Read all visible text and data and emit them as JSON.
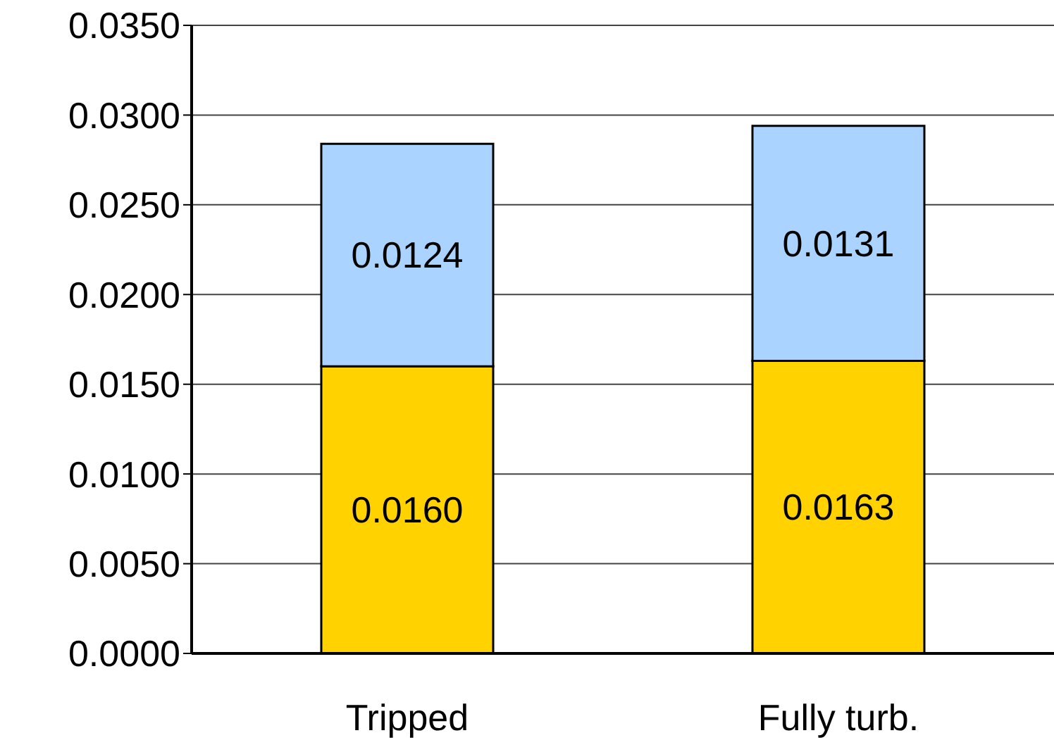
{
  "chart_data": {
    "type": "bar",
    "stacked": true,
    "categories": [
      "Tripped",
      "Fully turb."
    ],
    "series": [
      {
        "color": "#ffd200",
        "values": [
          0.016,
          0.0163
        ],
        "value_labels": [
          "0.0160",
          "0.0163"
        ]
      },
      {
        "color": "#aad4ff",
        "values": [
          0.0124,
          0.0131
        ],
        "value_labels": [
          "0.0124",
          "0.0131"
        ]
      }
    ],
    "ylim": [
      0,
      0.035
    ],
    "yticks": [
      {
        "value": 0,
        "label": "0.0000"
      },
      {
        "value": 0.005,
        "label": "0.0050"
      },
      {
        "value": 0.01,
        "label": "0.0100"
      },
      {
        "value": 0.015,
        "label": "0.0150"
      },
      {
        "value": 0.02,
        "label": "0.0200"
      },
      {
        "value": 0.025,
        "label": "0.0250"
      },
      {
        "value": 0.03,
        "label": "0.0300"
      },
      {
        "value": 0.035,
        "label": "0.0350"
      }
    ],
    "grid": "y",
    "legend": false
  }
}
